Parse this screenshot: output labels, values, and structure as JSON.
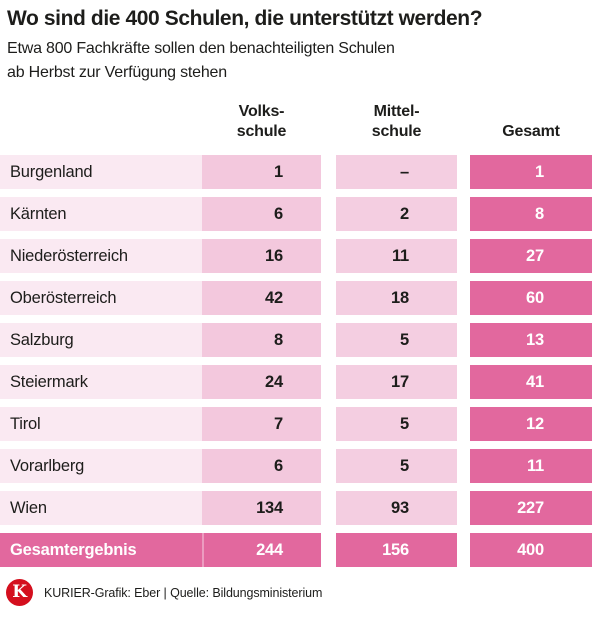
{
  "title": "Wo sind die 400 Schulen, die unterstützt werden?",
  "subtitle_line1": "Etwa 800 Fachkräfte sollen den benachteiligten Schulen",
  "subtitle_line2": "ab Herbst zur Verfügung stehen",
  "table": {
    "col_headers": [
      {
        "line1": "Volks-",
        "line2": "schule"
      },
      {
        "line1": "Mittel-",
        "line2": "schule"
      },
      {
        "line1": "",
        "line2": "Gesamt"
      }
    ],
    "rows": [
      {
        "label": "Burgenland",
        "volksschule": "1",
        "mittelschule": "–",
        "gesamt": "1"
      },
      {
        "label": "Kärnten",
        "volksschule": "6",
        "mittelschule": "2",
        "gesamt": "8"
      },
      {
        "label": "Niederösterreich",
        "volksschule": "16",
        "mittelschule": "11",
        "gesamt": "27"
      },
      {
        "label": "Oberösterreich",
        "volksschule": "42",
        "mittelschule": "18",
        "gesamt": "60"
      },
      {
        "label": "Salzburg",
        "volksschule": "8",
        "mittelschule": "5",
        "gesamt": "13"
      },
      {
        "label": "Steiermark",
        "volksschule": "24",
        "mittelschule": "17",
        "gesamt": "41"
      },
      {
        "label": "Tirol",
        "volksschule": "7",
        "mittelschule": "5",
        "gesamt": "12"
      },
      {
        "label": "Vorarlberg",
        "volksschule": "6",
        "mittelschule": "5",
        "gesamt": "11"
      },
      {
        "label": "Wien",
        "volksschule": "134",
        "mittelschule": "93",
        "gesamt": "227"
      }
    ],
    "total_row": {
      "label": "Gesamtergebnis",
      "volksschule": "244",
      "mittelschule": "156",
      "gesamt": "400"
    }
  },
  "footer": {
    "logo_letter": "K",
    "credit": "KURIER-Grafik: Eber | Quelle: Bildungsministerium"
  },
  "colors": {
    "row_band": "#fae9f2",
    "volks_cell": "#f3c8dd",
    "mittel_cell": "#f4cee1",
    "total_cell": "#e2689e",
    "kurier_red": "#d40f1e",
    "text": "#1d1d1b"
  },
  "chart_data": {
    "type": "table",
    "title": "Wo sind die 400 Schulen, die unterstützt werden?",
    "subtitle": "Etwa 800 Fachkräfte sollen den benachteiligten Schulen ab Herbst zur Verfügung stehen",
    "categories": [
      "Burgenland",
      "Kärnten",
      "Niederösterreich",
      "Oberösterreich",
      "Salzburg",
      "Steiermark",
      "Tirol",
      "Vorarlberg",
      "Wien"
    ],
    "series": [
      {
        "name": "Volksschule",
        "values": [
          1,
          6,
          16,
          42,
          8,
          24,
          7,
          6,
          134
        ],
        "total": 244
      },
      {
        "name": "Mittelschule",
        "values": [
          null,
          2,
          11,
          18,
          5,
          17,
          5,
          5,
          93
        ],
        "total": 156
      },
      {
        "name": "Gesamt",
        "values": [
          1,
          8,
          27,
          60,
          13,
          41,
          12,
          11,
          227
        ],
        "total": 400
      }
    ],
    "total_label": "Gesamtergebnis",
    "source": "Quelle: Bildungsministerium",
    "legend_position": "none",
    "grid": false
  }
}
